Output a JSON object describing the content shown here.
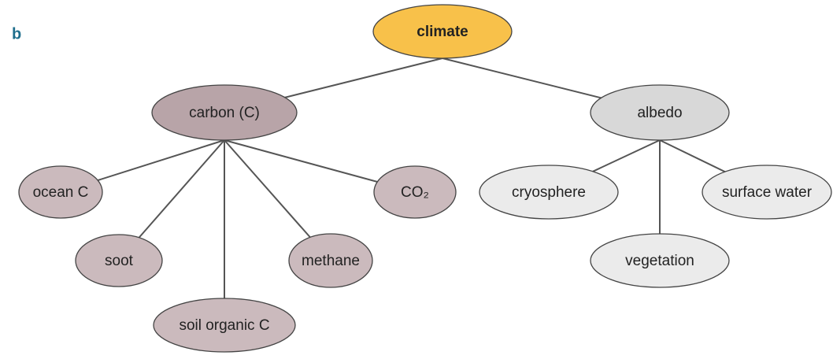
{
  "panel_label": "b",
  "nodes": [
    {
      "label": "climate"
    },
    {
      "label": "carbon (C)"
    },
    {
      "label": "albedo"
    },
    {
      "label": "ocean C"
    },
    {
      "label": "soot"
    },
    {
      "label": "soil organic C"
    },
    {
      "label": "methane"
    },
    {
      "label": "CO₂"
    },
    {
      "label": "cryosphere"
    },
    {
      "label": "vegetation"
    },
    {
      "label": "surface water"
    }
  ]
}
